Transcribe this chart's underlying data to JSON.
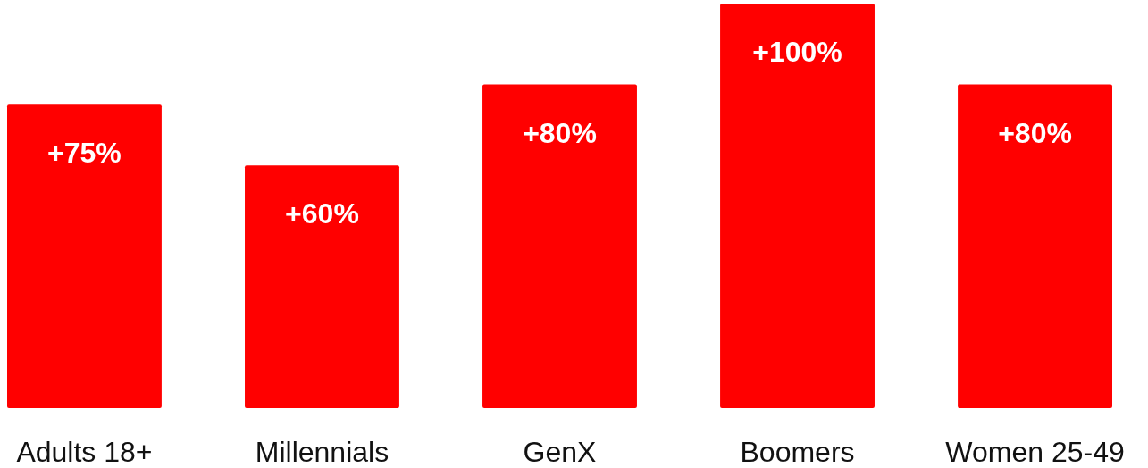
{
  "chart_data": {
    "type": "bar",
    "categories": [
      "Adults 18+",
      "Millennials",
      "GenX",
      "Boomers",
      "Women 25-49"
    ],
    "values": [
      75,
      60,
      80,
      100,
      80
    ],
    "value_labels": [
      "+75%",
      "+60%",
      "+80%",
      "+100%",
      "+80%"
    ],
    "color": "#ff0000"
  }
}
